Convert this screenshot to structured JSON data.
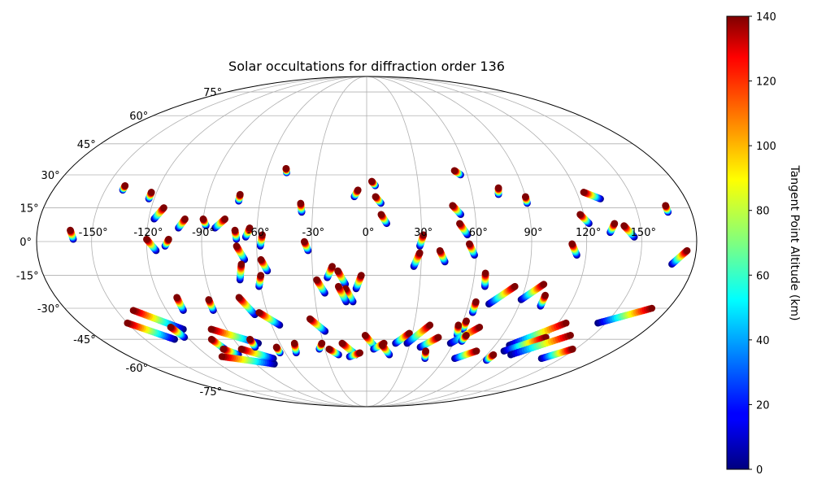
{
  "chart_data": {
    "type": "scatter",
    "projection": "mollweide",
    "title": "Solar occultations for diffraction order 136",
    "grid": true,
    "lon_ticks": [
      -150,
      -120,
      -90,
      -60,
      -30,
      0,
      30,
      60,
      90,
      120,
      150
    ],
    "lon_tick_labels": [
      "-150°",
      "-120°",
      "-90°",
      "-60°",
      "-30°",
      "0°",
      "30°",
      "60°",
      "90°",
      "120°",
      "150°"
    ],
    "lat_ticks": [
      -75,
      -60,
      -45,
      -30,
      -15,
      0,
      15,
      30,
      45,
      60,
      75
    ],
    "lat_tick_labels": [
      "-75°",
      "-60°",
      "-45°",
      "-30°",
      "-15°",
      "0°",
      "15°",
      "30°",
      "45°",
      "60°",
      "75°"
    ],
    "colorbar": {
      "label": "Tangent Point Altitude (km)",
      "colormap": "jet",
      "range": [
        0,
        140
      ],
      "ticks": [
        0,
        20,
        40,
        60,
        80,
        100,
        120,
        140
      ],
      "tick_labels": [
        "0",
        "20",
        "40",
        "60",
        "80",
        "100",
        "120",
        "140"
      ]
    },
    "tracks": [
      {
        "top": [
          -162,
          5
        ],
        "bottom": [
          -160,
          1
        ]
      },
      {
        "top": [
          -140,
          25
        ],
        "bottom": [
          -140,
          23
        ]
      },
      {
        "top": [
          -123,
          22
        ],
        "bottom": [
          -123,
          19
        ]
      },
      {
        "top": [
          -113,
          15
        ],
        "bottom": [
          -117,
          10
        ]
      },
      {
        "top": [
          -120,
          1
        ],
        "bottom": [
          -115,
          -4
        ]
      },
      {
        "top": [
          -108,
          1
        ],
        "bottom": [
          -110,
          -2
        ]
      },
      {
        "top": [
          -100,
          10
        ],
        "bottom": [
          -103,
          6
        ]
      },
      {
        "top": [
          -90,
          10
        ],
        "bottom": [
          -88,
          7
        ]
      },
      {
        "top": [
          -78,
          10
        ],
        "bottom": [
          -83,
          6
        ]
      },
      {
        "top": [
          -72,
          5
        ],
        "bottom": [
          -71,
          1
        ]
      },
      {
        "top": [
          -64,
          6
        ],
        "bottom": [
          -66,
          2
        ]
      },
      {
        "top": [
          -72,
          21
        ],
        "bottom": [
          -72,
          18
        ]
      },
      {
        "top": [
          -57,
          3
        ],
        "bottom": [
          -58,
          -2
        ]
      },
      {
        "top": [
          -71,
          -2
        ],
        "bottom": [
          -67,
          -8
        ]
      },
      {
        "top": [
          -69,
          -10
        ],
        "bottom": [
          -71,
          -17
        ]
      },
      {
        "top": [
          -58,
          -8
        ],
        "bottom": [
          -55,
          -13
        ]
      },
      {
        "top": [
          -59,
          -15
        ],
        "bottom": [
          -61,
          -20
        ]
      },
      {
        "top": [
          -49,
          33
        ],
        "bottom": [
          -48,
          31
        ]
      },
      {
        "top": [
          -37,
          17
        ],
        "bottom": [
          -36,
          13
        ]
      },
      {
        "top": [
          -34,
          0
        ],
        "bottom": [
          -32,
          -4
        ]
      },
      {
        "top": [
          -19,
          -11
        ],
        "bottom": [
          -22,
          -16
        ]
      },
      {
        "top": [
          -28,
          -17
        ],
        "bottom": [
          -24,
          -23
        ]
      },
      {
        "top": [
          -16,
          -13
        ],
        "bottom": [
          -12,
          -19
        ]
      },
      {
        "top": [
          -3,
          -15
        ],
        "bottom": [
          -6,
          -21
        ]
      },
      {
        "top": [
          -12,
          -21
        ],
        "bottom": [
          -8,
          -27
        ]
      },
      {
        "top": [
          -5,
          23
        ],
        "bottom": [
          -7,
          20
        ]
      },
      {
        "top": [
          3,
          27
        ],
        "bottom": [
          5,
          25
        ]
      },
      {
        "top": [
          5,
          20
        ],
        "bottom": [
          8,
          17
        ]
      },
      {
        "top": [
          8,
          12
        ],
        "bottom": [
          11,
          8
        ]
      },
      {
        "top": [
          31,
          3
        ],
        "bottom": [
          29,
          -2
        ]
      },
      {
        "top": [
          29,
          -5
        ],
        "bottom": [
          26,
          -11
        ]
      },
      {
        "top": [
          40,
          -4
        ],
        "bottom": [
          43,
          -9
        ]
      },
      {
        "top": [
          48,
          16
        ],
        "bottom": [
          52,
          12
        ]
      },
      {
        "top": [
          53,
          32
        ],
        "bottom": [
          56,
          30
        ]
      },
      {
        "top": [
          51,
          8
        ],
        "bottom": [
          55,
          3
        ]
      },
      {
        "top": [
          56,
          -1
        ],
        "bottom": [
          59,
          -6
        ]
      },
      {
        "top": [
          76,
          24
        ],
        "bottom": [
          75,
          21
        ]
      },
      {
        "top": [
          90,
          20
        ],
        "bottom": [
          90,
          17
        ]
      },
      {
        "top": [
          112,
          -1
        ],
        "bottom": [
          115,
          -6
        ]
      },
      {
        "top": [
          118,
          12
        ],
        "bottom": [
          122,
          8
        ]
      },
      {
        "top": [
          124,
          22
        ],
        "bottom": [
          132,
          19
        ]
      },
      {
        "top": [
          136,
          8
        ],
        "bottom": [
          133,
          4
        ]
      },
      {
        "top": [
          141,
          7
        ],
        "bottom": [
          146,
          2
        ]
      },
      {
        "top": [
          167,
          16
        ],
        "bottom": [
          167,
          13
        ]
      },
      {
        "top": [
          175,
          -4
        ],
        "bottom": [
          168,
          -10
        ]
      },
      {
        "top": [
          -92,
          -26
        ],
        "bottom": [
          -92,
          -31
        ]
      },
      {
        "top": [
          -74,
          -25
        ],
        "bottom": [
          -68,
          -33
        ]
      },
      {
        "top": [
          -110,
          -25
        ],
        "bottom": [
          -110,
          -31
        ]
      },
      {
        "top": [
          -65,
          -32
        ],
        "bottom": [
          -55,
          -38
        ]
      },
      {
        "top": [
          -35,
          -35
        ],
        "bottom": [
          -27,
          -41
        ]
      },
      {
        "top": [
          -16,
          -20
        ],
        "bottom": [
          -12,
          -27
        ]
      },
      {
        "top": [
          66,
          -14
        ],
        "bottom": [
          67,
          -20
        ]
      },
      {
        "top": [
          84,
          -20
        ],
        "bottom": [
          72,
          -28
        ]
      },
      {
        "top": [
          100,
          -19
        ],
        "bottom": [
          90,
          -26
        ]
      },
      {
        "top": [
          103,
          -24
        ],
        "bottom": [
          103,
          -29
        ]
      },
      {
        "top": [
          64,
          -27
        ],
        "bottom": [
          64,
          -32
        ]
      },
      {
        "top": [
          62,
          -36
        ],
        "bottom": [
          62,
          -40
        ]
      },
      {
        "top": [
          170,
          -30
        ],
        "bottom": [
          145,
          -37
        ]
      },
      {
        "top": [
          -140,
          -31
        ],
        "bottom": [
          -118,
          -40
        ]
      },
      {
        "top": [
          -150,
          -37
        ],
        "bottom": [
          -130,
          -45
        ]
      },
      {
        "top": [
          -100,
          -40
        ],
        "bottom": [
          -75,
          -47
        ]
      },
      {
        "top": [
          -105,
          -45
        ],
        "bottom": [
          -102,
          -50
        ]
      },
      {
        "top": [
          -125,
          -39
        ],
        "bottom": [
          -122,
          -44
        ]
      },
      {
        "top": [
          -103,
          -50
        ],
        "bottom": [
          -96,
          -53
        ]
      },
      {
        "top": [
          -110,
          -54
        ],
        "bottom": [
          -75,
          -58
        ]
      },
      {
        "top": [
          -90,
          -50
        ],
        "bottom": [
          -72,
          -55
        ]
      },
      {
        "top": [
          -79,
          -45
        ],
        "bottom": [
          -79,
          -49
        ]
      },
      {
        "top": [
          -64,
          -49
        ],
        "bottom": [
          -64,
          -52
        ]
      },
      {
        "top": [
          -50,
          -47
        ],
        "bottom": [
          -52,
          -52
        ]
      },
      {
        "top": [
          -31,
          -47
        ],
        "bottom": [
          -34,
          -50
        ]
      },
      {
        "top": [
          -27,
          -50
        ],
        "bottom": [
          -21,
          -53
        ]
      },
      {
        "top": [
          -17,
          -47
        ],
        "bottom": [
          -8,
          -53
        ]
      },
      {
        "top": [
          -5,
          -52
        ],
        "bottom": [
          -13,
          -54
        ]
      },
      {
        "top": [
          -1,
          -43
        ],
        "bottom": [
          6,
          -49
        ]
      },
      {
        "top": [
          12,
          -47
        ],
        "bottom": [
          5,
          -50
        ]
      },
      {
        "top": [
          11,
          -48
        ],
        "bottom": [
          17,
          -53
        ]
      },
      {
        "top": [
          28,
          -42
        ],
        "bottom": [
          20,
          -47
        ]
      },
      {
        "top": [
          40,
          -38
        ],
        "bottom": [
          28,
          -47
        ]
      },
      {
        "top": [
          48,
          -44
        ],
        "bottom": [
          38,
          -49
        ]
      },
      {
        "top": [
          43,
          -51
        ],
        "bottom": [
          45,
          -55
        ]
      },
      {
        "top": [
          58,
          -38
        ],
        "bottom": [
          60,
          -43
        ]
      },
      {
        "top": [
          72,
          -39
        ],
        "bottom": [
          58,
          -47
        ]
      },
      {
        "top": [
          66,
          -43
        ],
        "bottom": [
          65,
          -46
        ]
      },
      {
        "top": [
          80,
          -51
        ],
        "bottom": [
          68,
          -55
        ]
      },
      {
        "top": [
          95,
          -53
        ],
        "bottom": [
          94,
          -56
        ]
      },
      {
        "top": [
          125,
          -37
        ],
        "bottom": [
          100,
          -48
        ]
      },
      {
        "top": [
          120,
          -44
        ],
        "bottom": [
          100,
          -51
        ]
      },
      {
        "top": [
          135,
          -43
        ],
        "bottom": [
          108,
          -53
        ]
      },
      {
        "top": [
          148,
          -50
        ],
        "bottom": [
          135,
          -55
        ]
      }
    ]
  }
}
